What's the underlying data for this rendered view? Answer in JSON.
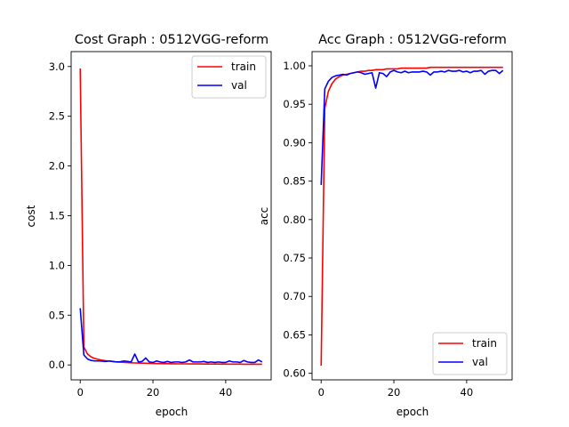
{
  "chart_data": [
    {
      "type": "line",
      "title": "Cost Graph : 0512VGG-reform",
      "xlabel": "epoch",
      "ylabel": "cost",
      "xlim": [
        -2.5,
        52.5
      ],
      "ylim": [
        -0.15,
        3.15
      ],
      "xticks": [
        0,
        20,
        40
      ],
      "xtick_labels": [
        "0",
        "20",
        "40"
      ],
      "yticks": [
        0.0,
        0.5,
        1.0,
        1.5,
        2.0,
        2.5,
        3.0
      ],
      "ytick_labels": [
        "0.0",
        "0.5",
        "1.0",
        "1.5",
        "2.0",
        "2.5",
        "3.0"
      ],
      "legend_position": "top-right",
      "grid": false,
      "x": [
        0,
        1,
        2,
        3,
        4,
        5,
        6,
        7,
        8,
        9,
        10,
        11,
        12,
        13,
        14,
        15,
        16,
        17,
        18,
        19,
        20,
        21,
        22,
        23,
        24,
        25,
        26,
        27,
        28,
        29,
        30,
        31,
        32,
        33,
        34,
        35,
        36,
        37,
        38,
        39,
        40,
        41,
        42,
        43,
        44,
        45,
        46,
        47,
        48,
        49,
        50
      ],
      "series": [
        {
          "name": "train",
          "color": "#ff0000",
          "values": [
            2.98,
            0.18,
            0.11,
            0.08,
            0.065,
            0.055,
            0.048,
            0.042,
            0.038,
            0.034,
            0.03,
            0.028,
            0.026,
            0.024,
            0.022,
            0.02,
            0.019,
            0.018,
            0.017,
            0.016,
            0.015,
            0.014,
            0.014,
            0.013,
            0.013,
            0.012,
            0.012,
            0.011,
            0.011,
            0.011,
            0.01,
            0.01,
            0.01,
            0.01,
            0.009,
            0.009,
            0.009,
            0.009,
            0.009,
            0.008,
            0.008,
            0.008,
            0.008,
            0.008,
            0.008,
            0.007,
            0.007,
            0.007,
            0.007,
            0.007,
            0.007
          ]
        },
        {
          "name": "val",
          "color": "#0000ff",
          "values": [
            0.57,
            0.1,
            0.06,
            0.045,
            0.04,
            0.04,
            0.038,
            0.035,
            0.04,
            0.035,
            0.03,
            0.032,
            0.04,
            0.035,
            0.03,
            0.11,
            0.03,
            0.035,
            0.07,
            0.03,
            0.025,
            0.04,
            0.03,
            0.025,
            0.035,
            0.025,
            0.03,
            0.03,
            0.025,
            0.03,
            0.05,
            0.03,
            0.03,
            0.03,
            0.035,
            0.025,
            0.03,
            0.025,
            0.03,
            0.025,
            0.025,
            0.04,
            0.03,
            0.03,
            0.025,
            0.045,
            0.03,
            0.025,
            0.025,
            0.05,
            0.03
          ]
        }
      ]
    },
    {
      "type": "line",
      "title": "Acc Graph : 0512VGG-reform",
      "xlabel": "epoch",
      "ylabel": "acc",
      "xlim": [
        -2.5,
        52.5
      ],
      "ylim": [
        0.5915,
        1.0185
      ],
      "xticks": [
        0,
        20,
        40
      ],
      "xtick_labels": [
        "0",
        "20",
        "40"
      ],
      "yticks": [
        0.6,
        0.65,
        0.7,
        0.75,
        0.8,
        0.85,
        0.9,
        0.95,
        1.0
      ],
      "ytick_labels": [
        "0.60",
        "0.65",
        "0.70",
        "0.75",
        "0.80",
        "0.85",
        "0.90",
        "0.95",
        "1.00"
      ],
      "legend_position": "bottom-right",
      "grid": false,
      "x": [
        0,
        1,
        2,
        3,
        4,
        5,
        6,
        7,
        8,
        9,
        10,
        11,
        12,
        13,
        14,
        15,
        16,
        17,
        18,
        19,
        20,
        21,
        22,
        23,
        24,
        25,
        26,
        27,
        28,
        29,
        30,
        31,
        32,
        33,
        34,
        35,
        36,
        37,
        38,
        39,
        40,
        41,
        42,
        43,
        44,
        45,
        46,
        47,
        48,
        49,
        50
      ],
      "series": [
        {
          "name": "train",
          "color": "#ff0000",
          "values": [
            0.61,
            0.945,
            0.967,
            0.977,
            0.983,
            0.986,
            0.988,
            0.989,
            0.99,
            0.991,
            0.992,
            0.993,
            0.993,
            0.994,
            0.994,
            0.995,
            0.995,
            0.995,
            0.996,
            0.996,
            0.996,
            0.996,
            0.997,
            0.997,
            0.997,
            0.997,
            0.997,
            0.997,
            0.997,
            0.997,
            0.998,
            0.998,
            0.998,
            0.998,
            0.998,
            0.998,
            0.998,
            0.998,
            0.998,
            0.998,
            0.998,
            0.998,
            0.998,
            0.998,
            0.998,
            0.998,
            0.998,
            0.998,
            0.998,
            0.998,
            0.998
          ]
        },
        {
          "name": "val",
          "color": "#0000ff",
          "values": [
            0.845,
            0.97,
            0.98,
            0.985,
            0.987,
            0.988,
            0.989,
            0.988,
            0.99,
            0.991,
            0.992,
            0.991,
            0.989,
            0.99,
            0.991,
            0.971,
            0.991,
            0.99,
            0.986,
            0.992,
            0.994,
            0.992,
            0.991,
            0.993,
            0.991,
            0.992,
            0.992,
            0.992,
            0.993,
            0.992,
            0.988,
            0.992,
            0.992,
            0.993,
            0.992,
            0.994,
            0.993,
            0.993,
            0.994,
            0.992,
            0.993,
            0.991,
            0.993,
            0.993,
            0.994,
            0.989,
            0.993,
            0.994,
            0.994,
            0.99,
            0.994
          ]
        }
      ]
    }
  ]
}
